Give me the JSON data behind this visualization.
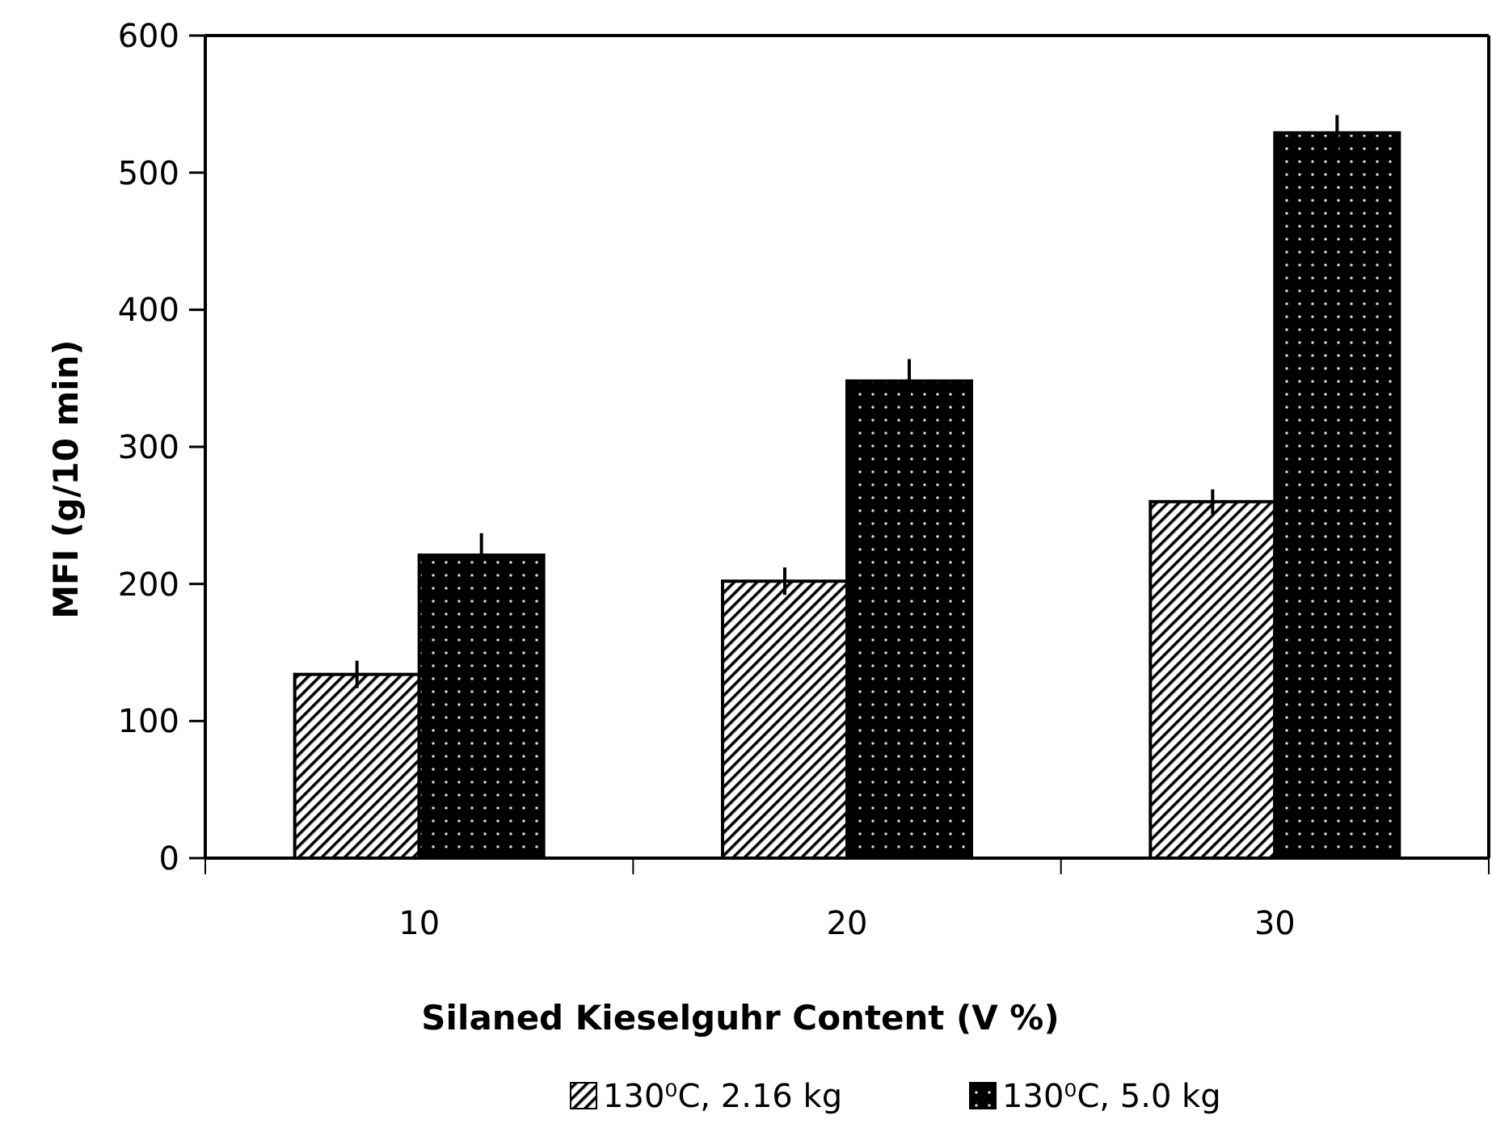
{
  "chart_data": {
    "type": "bar",
    "xlabel": "Silaned Kieselguhr Content (V %)",
    "ylabel": "MFI (g/10 min)",
    "categories": [
      "10",
      "20",
      "30"
    ],
    "series": [
      {
        "name": "130⁰C, 2.16 kg",
        "color": "#000000",
        "values": [
          134,
          202,
          260
        ],
        "errors": [
          10,
          10,
          9
        ]
      },
      {
        "name": "130⁰C, 5.0 kg",
        "color": "#000000",
        "values": [
          221,
          348,
          529
        ],
        "errors": [
          16,
          16,
          13
        ]
      }
    ],
    "ylim": [
      0,
      600
    ],
    "yticks": [
      0,
      100,
      200,
      300,
      400,
      500,
      600
    ],
    "grid": false,
    "legend": "bottom"
  }
}
